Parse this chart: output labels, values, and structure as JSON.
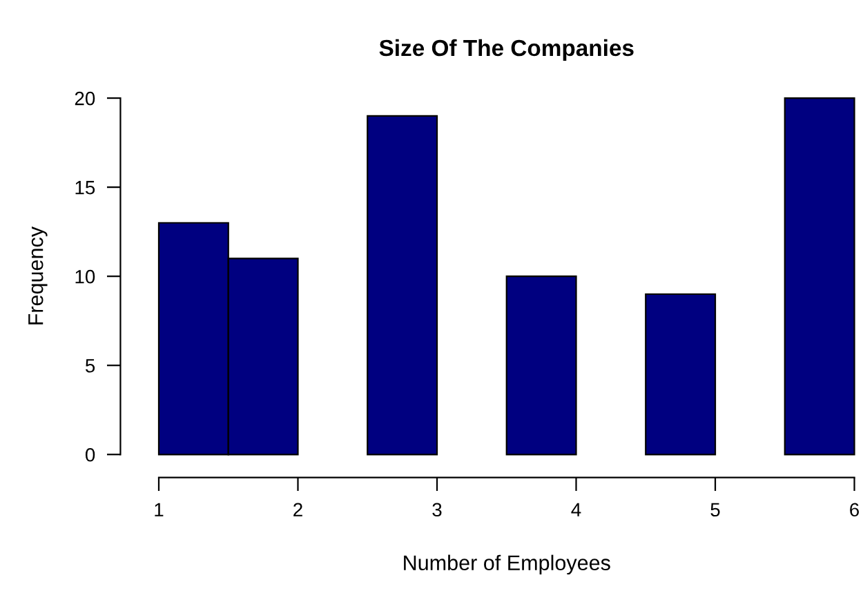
{
  "chart_data": {
    "type": "histogram",
    "title": "Size Of The Companies",
    "xlabel": "Number of Employees",
    "ylabel": "Frequency",
    "bins": [
      1,
      1.5,
      2,
      2.5,
      3,
      3.5,
      4,
      4.5,
      5,
      5.5,
      6
    ],
    "values": [
      13,
      11,
      0,
      19,
      0,
      10,
      0,
      9,
      0,
      20
    ],
    "color": "#000080",
    "xlim": [
      1,
      6
    ],
    "xticks": [
      1,
      2,
      3,
      4,
      5,
      6
    ],
    "ylim": [
      0,
      20
    ],
    "yticks": [
      0,
      5,
      10,
      15,
      20
    ],
    "grid": false
  }
}
